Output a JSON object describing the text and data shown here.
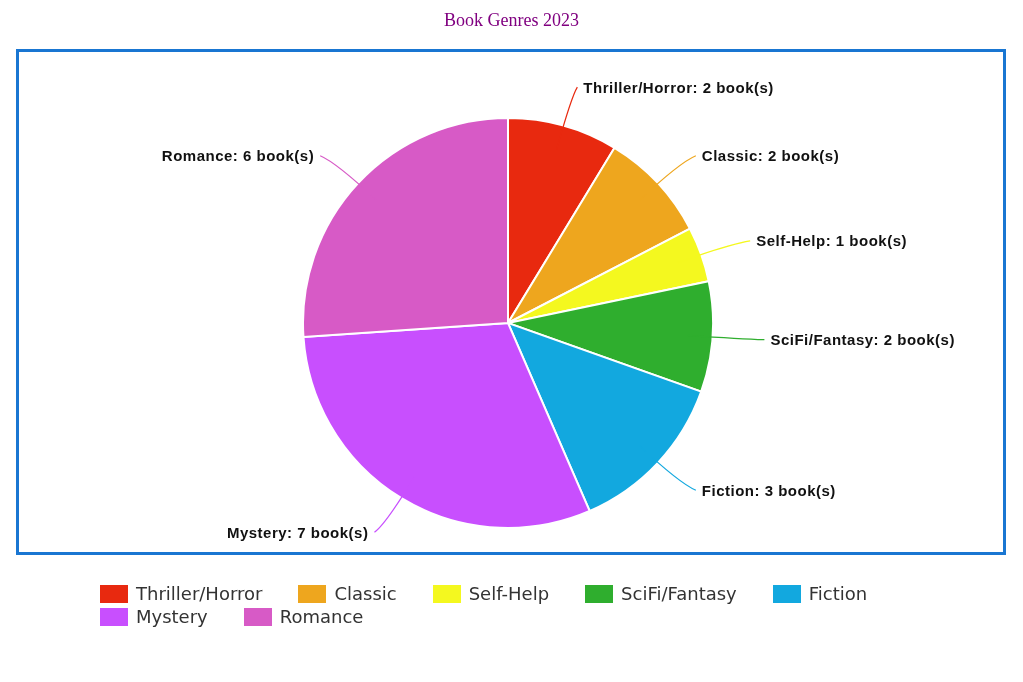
{
  "chart_data": {
    "type": "pie",
    "title": "Book Genres 2023",
    "categories": [
      "Thriller/Horror",
      "Classic",
      "Self-Help",
      "SciFi/Fantasy",
      "Fiction",
      "Mystery",
      "Romance"
    ],
    "values": [
      2,
      2,
      1,
      2,
      3,
      7,
      6
    ],
    "colors": [
      "#e8290f",
      "#eea61e",
      "#f4f81f",
      "#2fae2e",
      "#12a8df",
      "#c84ffe",
      "#d75ac6"
    ],
    "value_labels": [
      "Thriller/Horror: 2 book(s)",
      "Classic: 2 book(s)",
      "Self-Help: 1 book(s)",
      "SciFi/Fantasy: 2 book(s)",
      "Fiction: 3 book(s)",
      "Mystery: 7 book(s)",
      "Romance: 6 book(s)"
    ],
    "legend": "bottom"
  }
}
